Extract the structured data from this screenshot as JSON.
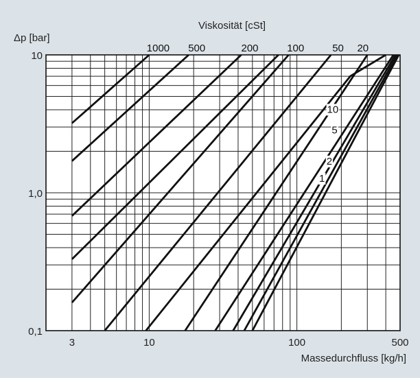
{
  "chart_data": {
    "type": "line",
    "xscale": "log",
    "yscale": "log",
    "xlim": [
      2,
      500
    ],
    "ylim": [
      0.1,
      10
    ],
    "grid": true,
    "xlabel": "Massedurchfluss [kg/h]",
    "ylabel": "Δp [bar]",
    "top_axis_title": "Viskosität [cSt]",
    "x_ticks": [
      {
        "value": 3,
        "label": "3"
      },
      {
        "value": 10,
        "label": "10"
      },
      {
        "value": 100,
        "label": "100"
      },
      {
        "value": 500,
        "label": "500"
      }
    ],
    "y_ticks": [
      {
        "value": 0.1,
        "label": "0,1"
      },
      {
        "value": 1,
        "label": "1,0"
      },
      {
        "value": 10,
        "label": "10"
      }
    ],
    "series": [
      {
        "name": "1000",
        "points": [
          [
            3,
            3.2
          ],
          [
            10,
            10
          ]
        ]
      },
      {
        "name": "500",
        "points": [
          [
            3,
            1.7
          ],
          [
            18.5,
            10
          ]
        ]
      },
      {
        "name": "200",
        "points": [
          [
            3,
            0.68
          ],
          [
            42,
            10
          ]
        ]
      },
      {
        "name": "",
        "points": [
          [
            3,
            0.33
          ],
          [
            75,
            10
          ]
        ]
      },
      {
        "name": "100",
        "points": [
          [
            3,
            0.16
          ],
          [
            88,
            10
          ]
        ]
      },
      {
        "name": "",
        "points": [
          [
            5,
            0.1
          ],
          [
            170,
            10
          ]
        ]
      },
      {
        "name": "50",
        "points": [
          [
            9.5,
            0.1
          ],
          [
            230,
            7.0
          ],
          [
            400,
            10
          ]
        ]
      },
      {
        "name": "20",
        "points": [
          [
            17.5,
            0.1
          ],
          [
            300,
            10
          ]
        ]
      },
      {
        "name": "10",
        "points": [
          [
            28,
            0.1
          ],
          [
            450,
            10
          ]
        ]
      },
      {
        "name": "5",
        "points": [
          [
            37,
            0.1
          ],
          [
            465,
            10
          ]
        ]
      },
      {
        "name": "2",
        "points": [
          [
            44,
            0.1
          ],
          [
            478,
            10
          ]
        ]
      },
      {
        "name": "1",
        "points": [
          [
            50,
            0.1
          ],
          [
            490,
            10
          ]
        ]
      }
    ],
    "top_labels": [
      {
        "text": "1000",
        "x": 11.5
      },
      {
        "text": "500",
        "x": 21
      },
      {
        "text": "200",
        "x": 48
      },
      {
        "text": "100",
        "x": 98
      },
      {
        "text": "50",
        "x": 190
      },
      {
        "text": "20",
        "x": 280
      }
    ],
    "inline_labels": [
      {
        "text": "10",
        "x": 175,
        "y": 3.8
      },
      {
        "text": "5",
        "x": 180,
        "y": 2.7
      },
      {
        "text": "2",
        "x": 166,
        "y": 1.6
      },
      {
        "text": "1",
        "x": 148,
        "y": 1.2
      }
    ]
  }
}
